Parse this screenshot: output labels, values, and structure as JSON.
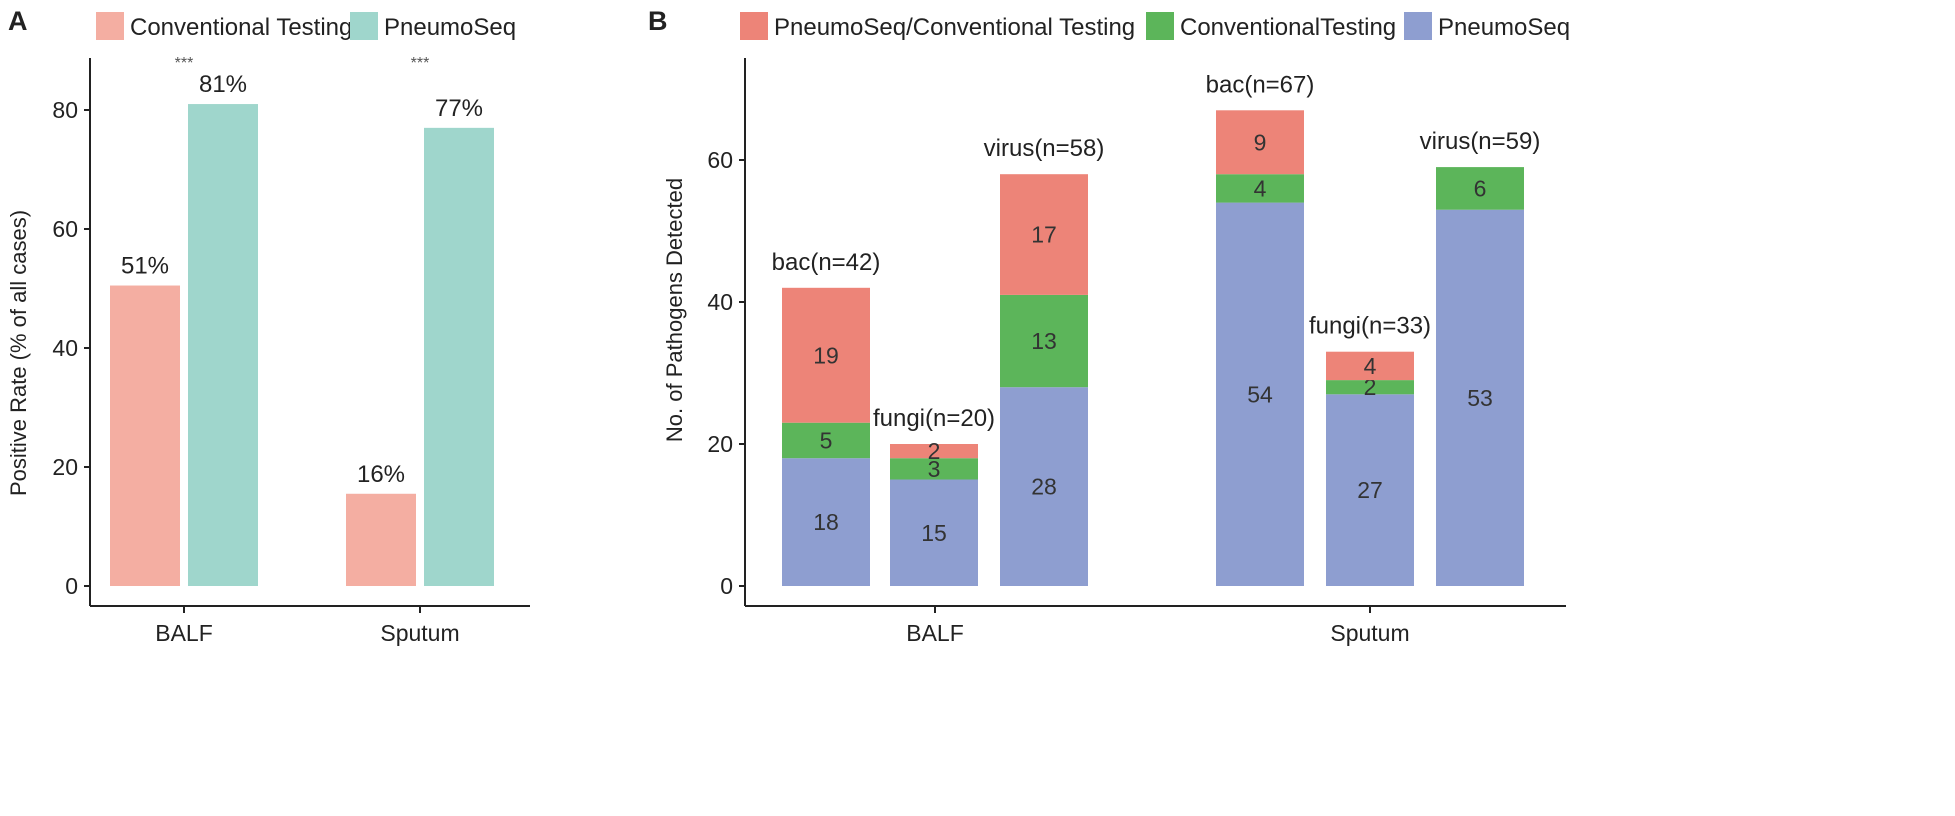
{
  "colors": {
    "conventional": "#f4aea2",
    "pneumoseq_a": "#9fd6cc",
    "overlap": "#ed8478",
    "conventional_only": "#5cb55a",
    "pneumoseq_only": "#8e9ed0"
  },
  "chart_data": [
    {
      "panel": "A",
      "type": "bar",
      "title": "",
      "xlabel": "",
      "ylabel": "Positive Rate (% of all cases)",
      "ylim": [
        0,
        88
      ],
      "yticks": [
        0,
        20,
        40,
        60,
        80
      ],
      "categories": [
        "BALF",
        "Sputum"
      ],
      "legend": [
        "Conventional Testing",
        "PneumoSeq"
      ],
      "legend_position": "top",
      "series": [
        {
          "name": "Conventional Testing",
          "values": [
            50.5,
            15.5
          ],
          "labels": [
            "51%",
            "16%"
          ]
        },
        {
          "name": "PneumoSeq",
          "values": [
            81,
            77
          ],
          "labels": [
            "81%",
            "77%"
          ]
        }
      ],
      "significance": [
        "***",
        "***"
      ]
    },
    {
      "panel": "B",
      "type": "bar",
      "stacked": true,
      "title": "",
      "xlabel": "",
      "ylabel": "No. of Pathogens Detected",
      "ylim": [
        0,
        72
      ],
      "yticks": [
        0,
        20,
        40,
        60
      ],
      "groups": [
        "BALF",
        "Sputum"
      ],
      "legend": [
        "PneumoSeq/Conventional Testing",
        "ConventionalTesting",
        "PneumoSeq"
      ],
      "legend_position": "top",
      "bars": [
        {
          "group": "BALF",
          "label": "bac(n=42)",
          "pneumoseq": 18,
          "conventional": 5,
          "both": 19
        },
        {
          "group": "BALF",
          "label": "fungi(n=20)",
          "pneumoseq": 15,
          "conventional": 3,
          "both": 2
        },
        {
          "group": "BALF",
          "label": "virus(n=58)",
          "pneumoseq": 28,
          "conventional": 13,
          "both": 17
        },
        {
          "group": "Sputum",
          "label": "bac(n=67)",
          "pneumoseq": 54,
          "conventional": 4,
          "both": 9
        },
        {
          "group": "Sputum",
          "label": "fungi(n=33)",
          "pneumoseq": 27,
          "conventional": 2,
          "both": 4
        },
        {
          "group": "Sputum",
          "label": "virus(n=59)",
          "pneumoseq": 53,
          "conventional": 6,
          "both": 0
        }
      ]
    }
  ]
}
